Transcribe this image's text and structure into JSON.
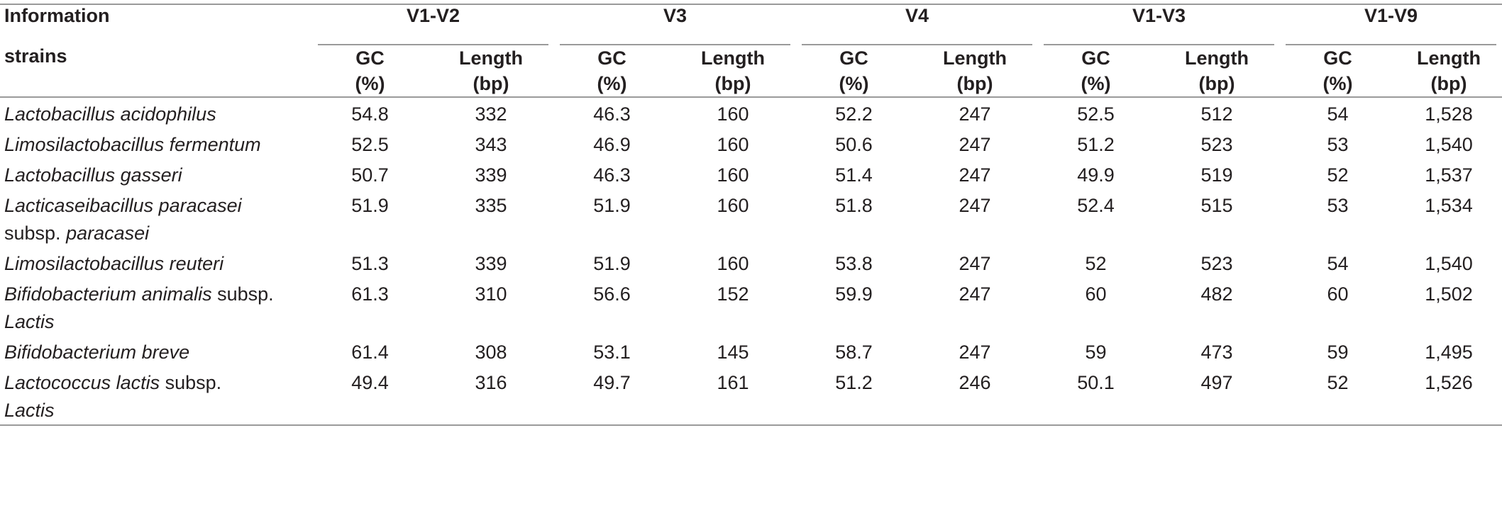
{
  "table": {
    "header_top": {
      "first": "Information",
      "groups": [
        "V1-V2",
        "V3",
        "V4",
        "V1-V3",
        "V1-V9"
      ]
    },
    "header_sub": {
      "first": "strains",
      "gc": [
        "GC",
        "(%)"
      ],
      "length": [
        "Length",
        "(bp)"
      ]
    },
    "rows": [
      {
        "name_italic": "Lactobacillus acidophilus",
        "name_rest": "",
        "name_line2": "",
        "name_line2_italic": false,
        "values": [
          "54.8",
          "332",
          "46.3",
          "160",
          "52.2",
          "247",
          "52.5",
          "512",
          "54",
          "1,528"
        ]
      },
      {
        "name_italic": "Limosilactobacillus fermentum",
        "name_rest": "",
        "name_line2": "",
        "name_line2_italic": false,
        "values": [
          "52.5",
          "343",
          "46.9",
          "160",
          "50.6",
          "247",
          "51.2",
          "523",
          "53",
          "1,540"
        ]
      },
      {
        "name_italic": "Lactobacillus gasseri",
        "name_rest": "",
        "name_line2": "",
        "name_line2_italic": false,
        "values": [
          "50.7",
          "339",
          "46.3",
          "160",
          "51.4",
          "247",
          "49.9",
          "519",
          "52",
          "1,537"
        ]
      },
      {
        "name_italic": "Lacticaseibacillus paracasei",
        "name_rest": "",
        "name_line2_plain": "subsp. ",
        "name_line2": "paracasei",
        "name_line2_italic": true,
        "values": [
          "51.9",
          "335",
          "51.9",
          "160",
          "51.8",
          "247",
          "52.4",
          "515",
          "53",
          "1,534"
        ]
      },
      {
        "name_italic": "Limosilactobacillus reuteri",
        "name_rest": "",
        "name_line2": "",
        "name_line2_italic": false,
        "values": [
          "51.3",
          "339",
          "51.9",
          "160",
          "53.8",
          "247",
          "52",
          "523",
          "54",
          "1,540"
        ]
      },
      {
        "name_italic": "Bifidobacterium animalis",
        "name_rest": " subsp.",
        "name_line2": "Lactis",
        "name_line2_italic": true,
        "values": [
          "61.3",
          "310",
          "56.6",
          "152",
          "59.9",
          "247",
          "60",
          "482",
          "60",
          "1,502"
        ]
      },
      {
        "name_italic": "Bifidobacterium breve",
        "name_rest": "",
        "name_line2": "",
        "name_line2_italic": false,
        "values": [
          "61.4",
          "308",
          "53.1",
          "145",
          "58.7",
          "247",
          "59",
          "473",
          "59",
          "1,495"
        ]
      },
      {
        "name_italic": "Lactococcus lactis",
        "name_rest": " subsp.",
        "name_line2": "Lactis",
        "name_line2_italic": true,
        "values": [
          "49.4",
          "316",
          "49.7",
          "161",
          "51.2",
          "246",
          "50.1",
          "497",
          "52",
          "1,526"
        ]
      }
    ]
  }
}
